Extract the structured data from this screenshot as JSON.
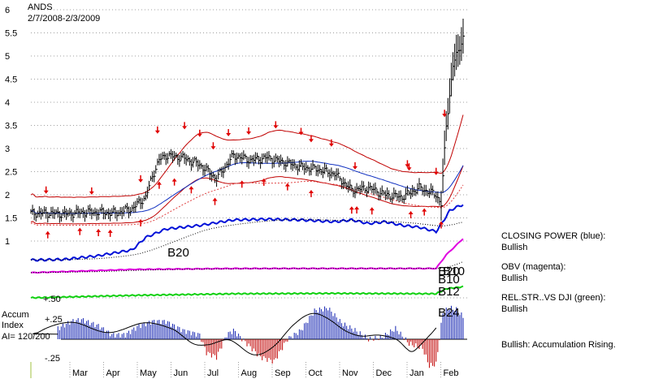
{
  "chart_data": {
    "type": "line",
    "title": "ANDS",
    "subtitle": "2/7/2008-2/3/2009",
    "y_ticks": [
      "6",
      "5.5",
      "5",
      "4.5",
      "4",
      "3.5",
      "3",
      "2.5",
      "2",
      "1.5",
      "1"
    ],
    "y_range": [
      1,
      6
    ],
    "x_ticks": [
      "Mar",
      "Apr",
      "May",
      "Jun",
      "Jul",
      "Aug",
      "Sep",
      "Oct",
      "Nov",
      "Dec",
      "Jan",
      "Feb"
    ],
    "price_series": {
      "days": [
        0,
        10,
        20,
        30,
        40,
        50,
        60,
        68,
        72,
        76,
        80,
        90,
        100,
        110,
        120,
        130,
        140,
        150,
        160,
        170,
        180,
        190,
        200,
        210,
        220,
        230,
        240,
        243,
        246,
        250,
        254,
        256
      ],
      "close": [
        1.6,
        1.6,
        1.58,
        1.62,
        1.62,
        1.6,
        1.7,
        1.95,
        2.4,
        2.75,
        2.85,
        2.8,
        2.65,
        2.35,
        2.85,
        2.75,
        2.8,
        2.7,
        2.6,
        2.55,
        2.45,
        2.1,
        2.15,
        2.0,
        1.95,
        2.15,
        2.0,
        1.8,
        3.5,
        4.8,
        5.2,
        5.4
      ]
    },
    "closing_power": {
      "days": [
        0,
        20,
        40,
        60,
        68,
        80,
        100,
        120,
        140,
        160,
        180,
        190,
        200,
        210,
        220,
        230,
        240,
        244,
        248,
        252,
        256
      ],
      "values": [
        0.1,
        0.12,
        0.22,
        0.38,
        0.72,
        0.95,
        1.05,
        1.2,
        1.22,
        1.2,
        1.15,
        1.2,
        1.1,
        1.15,
        1.05,
        1.0,
        0.88,
        1.15,
        1.45,
        1.55,
        1.62
      ]
    },
    "obv": {
      "days": [
        0,
        60,
        120,
        180,
        240,
        246,
        256
      ],
      "values": [
        0.35,
        0.45,
        0.48,
        0.48,
        0.48,
        0.9,
        1.4
      ]
    },
    "rel_str": {
      "days": [
        0,
        60,
        120,
        180,
        240,
        246,
        256
      ],
      "values": [
        0.2,
        0.32,
        0.4,
        0.42,
        0.4,
        0.65,
        0.75
      ]
    },
    "accum_index": {
      "current": 120,
      "days": [
        0,
        8,
        16,
        24,
        30,
        40,
        48,
        56,
        64,
        72,
        80,
        90,
        100,
        104,
        110,
        116,
        120,
        128,
        136,
        144,
        152,
        160,
        168,
        176,
        184,
        192,
        200,
        208,
        216,
        224,
        232,
        236,
        240,
        244,
        248,
        252,
        256
      ],
      "values": [
        -0.05,
        0.08,
        0.12,
        0.2,
        0.22,
        0.15,
        0.05,
        0.05,
        0.15,
        0.2,
        0.2,
        0.1,
        0.05,
        -0.15,
        -0.2,
        0.05,
        0.1,
        -0.05,
        -0.2,
        -0.25,
        0.0,
        0.1,
        0.32,
        0.35,
        0.18,
        0.1,
        0.0,
        0.02,
        0.12,
        -0.05,
        -0.1,
        -0.3,
        -0.28,
        0.3,
        0.35,
        0.33,
        0.25
      ]
    },
    "accum_ticks": [
      "+.25",
      "-.25"
    ],
    "accum_ref": "+.50",
    "signals": {
      "sells": [
        9,
        36,
        65,
        75,
        91,
        100,
        108,
        117,
        129,
        145,
        160,
        166,
        178,
        192,
        223,
        224,
        240,
        245,
        256
      ],
      "buys": [
        10,
        29,
        40,
        47,
        65,
        76,
        85,
        95,
        109,
        125,
        138,
        152,
        166,
        190,
        193,
        202,
        225,
        233,
        243
      ]
    },
    "annotations": [
      {
        "text": "B20",
        "day": 78,
        "panel": "closing_power"
      },
      {
        "text": "B20",
        "day": 244,
        "panel": "obv"
      },
      {
        "text": "B10",
        "day": 244,
        "panel": "obv"
      },
      {
        "text": "B10",
        "day": 247,
        "panel": "obv"
      },
      {
        "text": "B12",
        "day": 244,
        "panel": "rel_str"
      },
      {
        "text": "B24",
        "day": 244,
        "panel": "accum"
      }
    ],
    "accum_labels": {
      "line1": "Accum",
      "line2": "Index",
      "line3": "AI= 120/200"
    },
    "legend": [
      {
        "label": "CLOSING POWER (blue):",
        "status": "Bullish",
        "color": "#0000d8"
      },
      {
        "label": "OBV (magenta):",
        "status": "Bullish",
        "color": "#e000e0"
      },
      {
        "label": "REL.STR..VS DJI (green):",
        "status": "Bullish",
        "color": "#10d010"
      }
    ],
    "summary": "Bullish: Accumulation Rising."
  }
}
